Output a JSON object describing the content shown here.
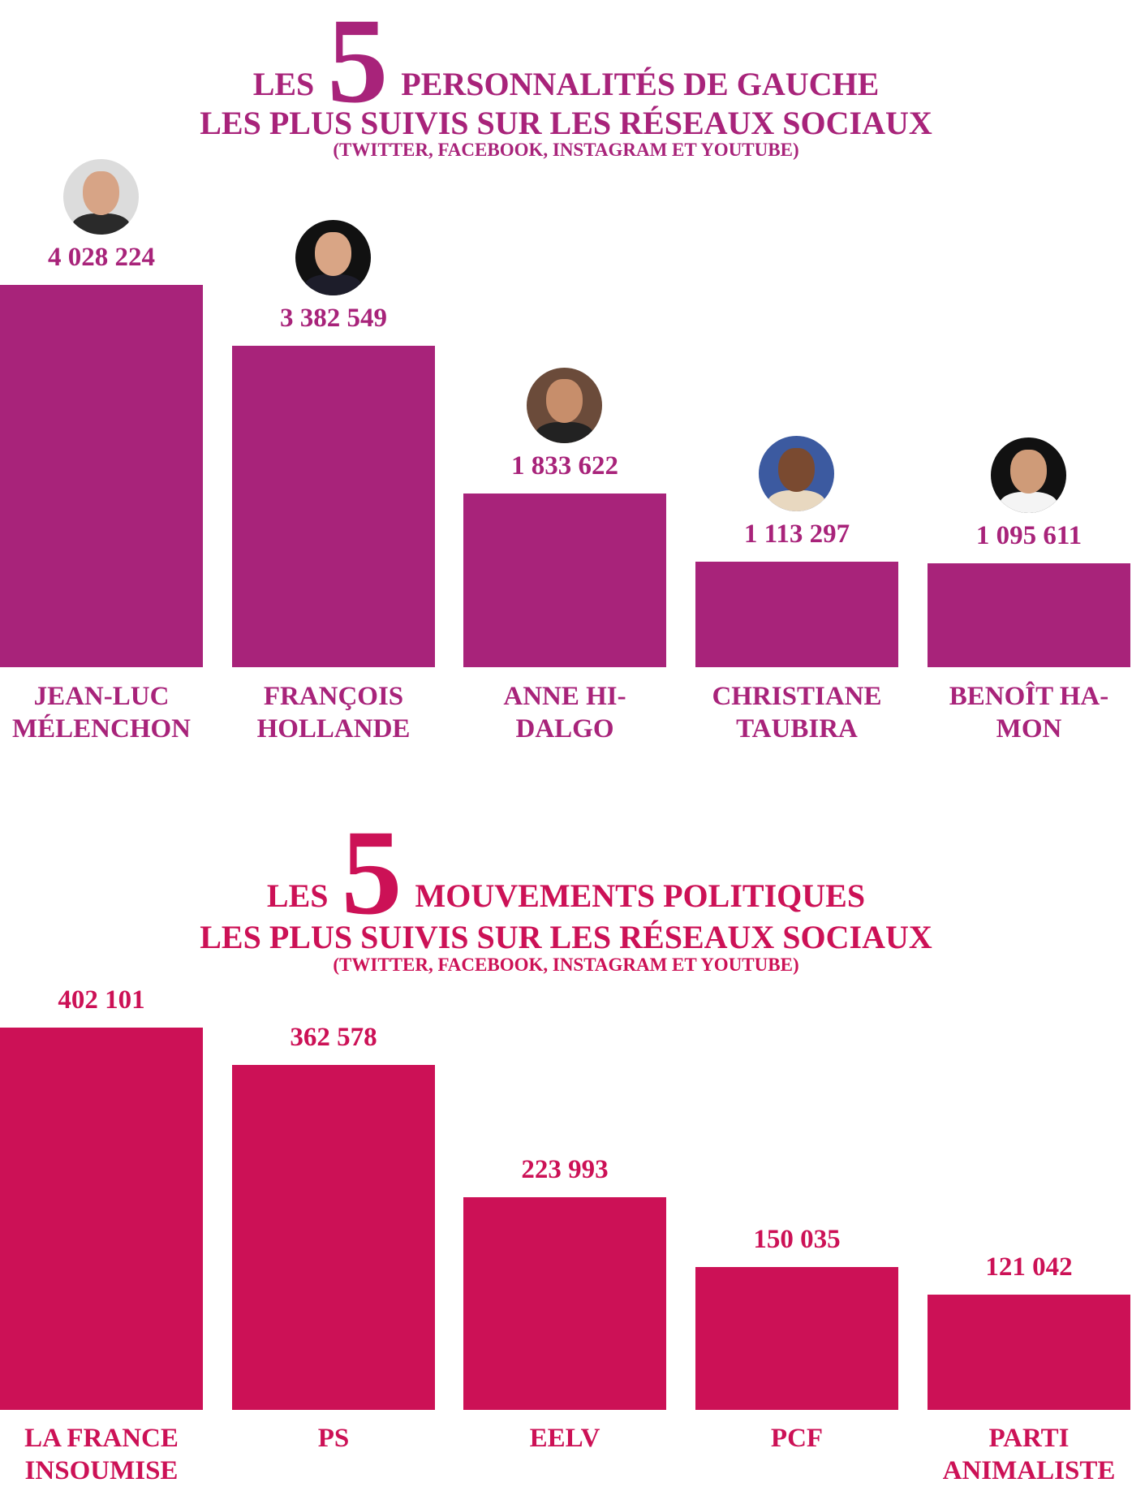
{
  "colors": {
    "section1": "#a8237a",
    "section2": "#cc1156"
  },
  "chart_data": [
    {
      "type": "bar",
      "title": {
        "pre": "LES",
        "number": "5",
        "post": "PERSONNALITÉS DE GAUCHE",
        "line2": "LES PLUS SUIVIS SUR LES RÉSEAUX SOCIAUX",
        "line3": "(TWITTER, FACEBOOK, INSTAGRAM ET YOUTUBE)"
      },
      "categories": [
        "JEAN-LUC MÉLENCHON",
        "FRANÇOIS HOLLANDE",
        "ANNE HI-DALGO",
        "CHRISTIANE TAUBIRA",
        "BENOÎT HA-MON"
      ],
      "category_lines": [
        [
          "JEAN-LUC",
          "MÉLENCHON"
        ],
        [
          "FRANÇOIS",
          "HOLLANDE"
        ],
        [
          "ANNE HI-",
          "DALGO"
        ],
        [
          "CHRISTIANE",
          "TAUBIRA"
        ],
        [
          "BENOÎT HA-",
          "MON"
        ]
      ],
      "values": [
        4028224,
        3382549,
        1833622,
        1113297,
        1095611
      ],
      "value_labels": [
        "4 028 224",
        "3 382 549",
        "1 833 622",
        "1 113 297",
        "1 095 611"
      ],
      "photos": [
        "portrait-melenchon",
        "portrait-hollande",
        "portrait-hidalgo",
        "portrait-taubira",
        "portrait-hamon"
      ],
      "xlabel": "",
      "ylabel": "",
      "grid": false
    },
    {
      "type": "bar",
      "title": {
        "pre": "LES",
        "number": "5",
        "post": "MOUVEMENTS POLITIQUES",
        "line2": "LES PLUS SUIVIS SUR LES RÉSEAUX SOCIAUX",
        "line3": "(TWITTER, FACEBOOK, INSTAGRAM ET YOUTUBE)"
      },
      "categories": [
        "LA FRANCE INSOUMISE",
        "PS",
        "EELV",
        "PCF",
        "PARTI ANIMALISTE"
      ],
      "category_lines": [
        [
          "LA FRANCE",
          "INSOUMISE"
        ],
        [
          "PS",
          ""
        ],
        [
          "EELV",
          ""
        ],
        [
          "PCF",
          ""
        ],
        [
          "PARTI",
          "ANIMALISTE"
        ]
      ],
      "values": [
        402101,
        362578,
        223993,
        150035,
        121042
      ],
      "value_labels": [
        "402 101",
        "362 578",
        "223 993",
        "150 035",
        "121 042"
      ],
      "xlabel": "",
      "ylabel": "",
      "grid": false
    }
  ]
}
